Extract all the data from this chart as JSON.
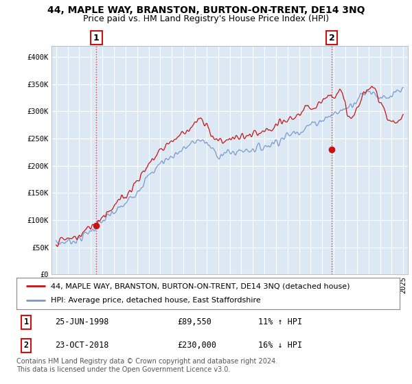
{
  "title": "44, MAPLE WAY, BRANSTON, BURTON-ON-TRENT, DE14 3NQ",
  "subtitle": "Price paid vs. HM Land Registry's House Price Index (HPI)",
  "ylabel_ticks": [
    "£0",
    "£50K",
    "£100K",
    "£150K",
    "£200K",
    "£250K",
    "£300K",
    "£350K",
    "£400K"
  ],
  "ytick_values": [
    0,
    50000,
    100000,
    150000,
    200000,
    250000,
    300000,
    350000,
    400000
  ],
  "ylim": [
    0,
    420000
  ],
  "xlim_start": 1994.6,
  "xlim_end": 2025.4,
  "line1_color": "#cc1111",
  "line2_color": "#7799cc",
  "marker_color": "#cc1111",
  "point1_x": 1998.48,
  "point1_y": 89550,
  "point2_x": 2018.81,
  "point2_y": 230000,
  "vline_color": "#cc1111",
  "vline_style": ":",
  "legend_label1": "44, MAPLE WAY, BRANSTON, BURTON-ON-TRENT, DE14 3NQ (detached house)",
  "legend_label2": "HPI: Average price, detached house, East Staffordshire",
  "table_row1": [
    "1",
    "25-JUN-1998",
    "£89,550",
    "11% ↑ HPI"
  ],
  "table_row2": [
    "2",
    "23-OCT-2018",
    "£230,000",
    "16% ↓ HPI"
  ],
  "footer_text": "Contains HM Land Registry data © Crown copyright and database right 2024.\nThis data is licensed under the Open Government Licence v3.0.",
  "bg_color": "#ffffff",
  "plot_bg_color": "#dce9f5",
  "grid_color": "#ffffff",
  "title_fontsize": 10,
  "subtitle_fontsize": 9,
  "tick_fontsize": 7.5,
  "legend_fontsize": 8,
  "table_fontsize": 8.5,
  "footer_fontsize": 7
}
